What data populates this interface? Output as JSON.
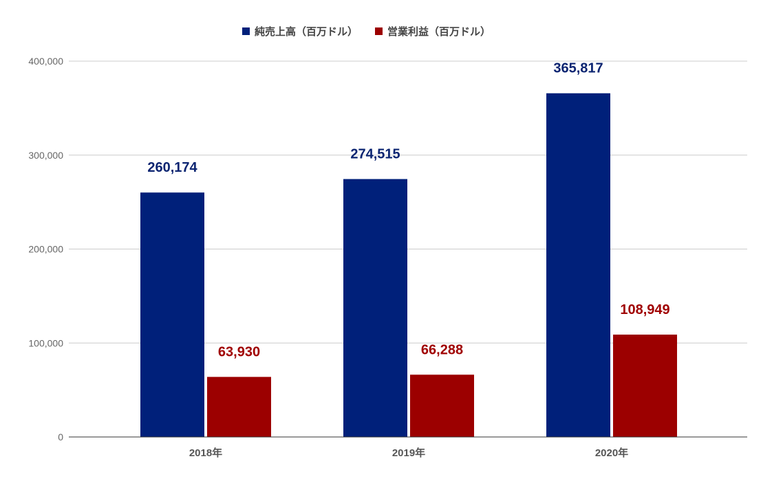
{
  "chart_data": {
    "type": "bar",
    "title": "",
    "xlabel": "",
    "ylabel": "",
    "categories": [
      "2018年",
      "2019年",
      "2020年"
    ],
    "series": [
      {
        "name": "純売上高（百万ドル）",
        "color": "#00207a",
        "label_color": "#0b2471",
        "values": [
          260174,
          274515,
          365817
        ],
        "labels": [
          "260,174",
          "274,515",
          "365,817"
        ]
      },
      {
        "name": "営業利益（百万ドル）",
        "color": "#9c0000",
        "label_color": "#a00000",
        "values": [
          63930,
          66288,
          108949
        ],
        "labels": [
          "63,930",
          "66,288",
          "108,949"
        ]
      }
    ],
    "ylim": [
      0,
      400000
    ],
    "yticks": [
      0,
      100000,
      200000,
      300000,
      400000
    ],
    "ytick_labels": [
      "0",
      "100,000",
      "200,000",
      "300,000",
      "400,000"
    ],
    "grid": true,
    "legend_position": "top-center",
    "gridline_color": "#cccccc",
    "axis_color": "#333333"
  }
}
